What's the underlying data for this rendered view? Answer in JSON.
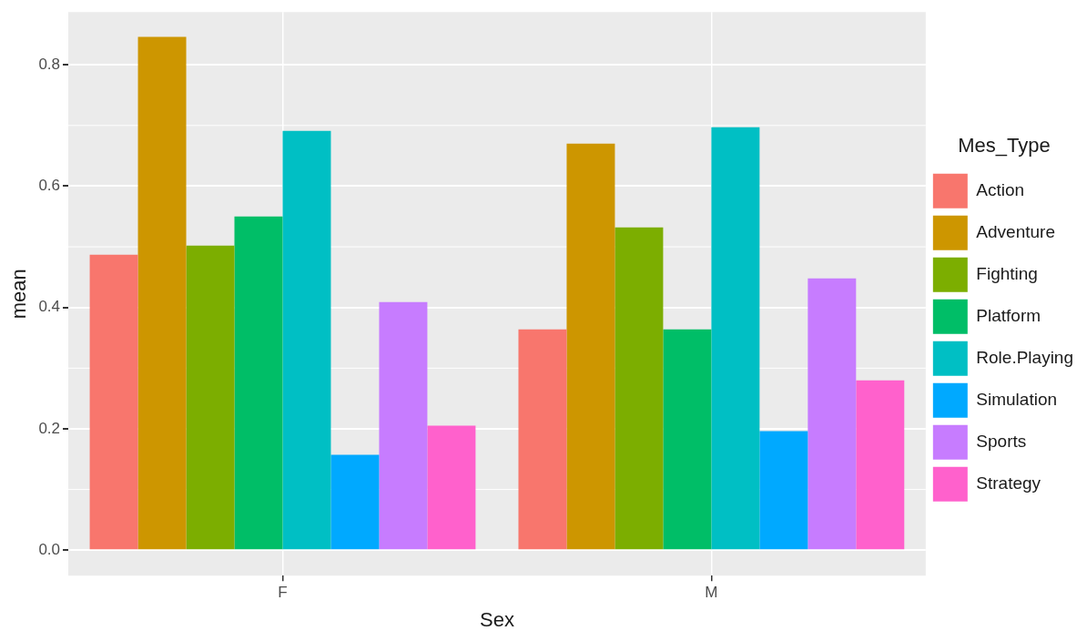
{
  "chart_data": {
    "type": "bar",
    "xlabel": "Sex",
    "ylabel": "mean",
    "legend_title": "Mes_Type",
    "categories": [
      "F",
      "M"
    ],
    "series": [
      {
        "name": "Action",
        "color": "#f8766d",
        "values": [
          0.487,
          0.364
        ]
      },
      {
        "name": "Adventure",
        "color": "#cd9600",
        "values": [
          0.846,
          0.67
        ]
      },
      {
        "name": "Fighting",
        "color": "#7cae00",
        "values": [
          0.502,
          0.532
        ]
      },
      {
        "name": "Platform",
        "color": "#00be67",
        "values": [
          0.55,
          0.364
        ]
      },
      {
        "name": "Role.Playing",
        "color": "#00bfc4",
        "values": [
          0.691,
          0.697
        ]
      },
      {
        "name": "Simulation",
        "color": "#00a9ff",
        "values": [
          0.157,
          0.196
        ]
      },
      {
        "name": "Sports",
        "color": "#c77cff",
        "values": [
          0.409,
          0.448
        ]
      },
      {
        "name": "Strategy",
        "color": "#ff61cc",
        "values": [
          0.205,
          0.28
        ]
      }
    ],
    "ylim": [
      -0.042,
      0.887
    ],
    "yticks": [
      {
        "value": 0,
        "label": "0.0"
      },
      0.2,
      0.4,
      0.6,
      0.8
    ],
    "grid": true,
    "legend": "right"
  }
}
